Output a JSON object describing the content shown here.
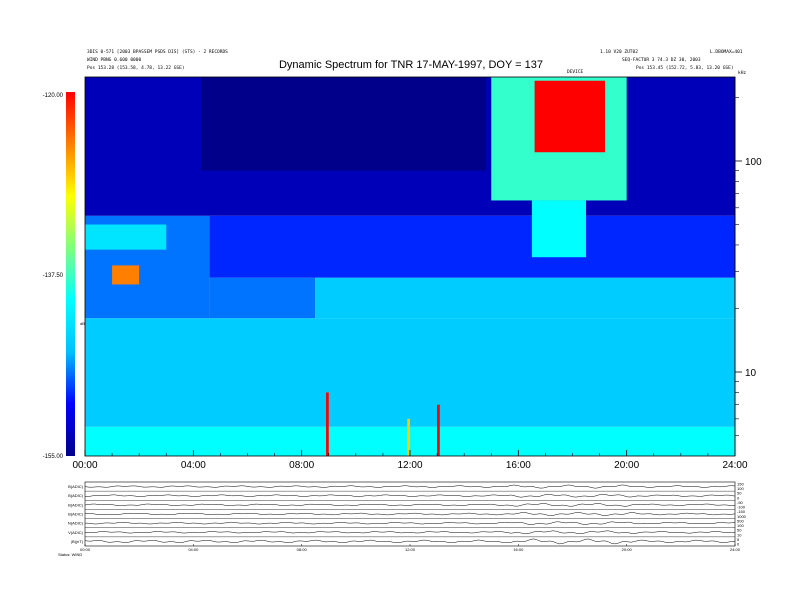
{
  "chart_data": {
    "type": "heatmap",
    "title": "Dynamic Spectrum for TNR 17-MAY-1997, DOY = 137",
    "header_left": [
      "3DIS 0-571 [2003 BPASSEM PSDS DIS] (STS) - 2 RECORDS",
      "WIND PBNG 0.600 0000",
      "Pos   153.28 (153.58, 4.78, 13.22 GSE)"
    ],
    "header_right": [
      "1.10 V20 ZUT02",
      "SEQ-FACTUR 3 74.3 DZ 30, 2003",
      "Pos   153.45 (152.72, 5.83, 13.20 GSE)"
    ],
    "header_right_extra": "L.DBOMAX=401",
    "header_center_small": "DEVICE",
    "x_tick_labels": [
      "00:00",
      "04:00",
      "08:00",
      "12:00",
      "16:00",
      "20:00",
      "24:00"
    ],
    "x_range_hours": [
      0,
      24
    ],
    "y_axis_label": "kHz",
    "y_scale": "log",
    "y_range_khz": [
      4,
      250
    ],
    "y_tick_labels": [
      {
        "value": 100,
        "label": "100"
      },
      {
        "value": 10,
        "label": "10"
      }
    ],
    "colorbar": {
      "label": "dB",
      "tick_labels": [
        "-120.00",
        "-137.50",
        "-155.00"
      ],
      "range": [
        -155.0,
        -120.0
      ],
      "colormap": [
        "#00008b",
        "#0000ff",
        "#00bfff",
        "#00ffff",
        "#7fff7f",
        "#ffff00",
        "#ff7f00",
        "#ff0000"
      ]
    },
    "regions_db": [
      {
        "t0": 0.0,
        "t1": 24.0,
        "f0": 4,
        "f1": 5.5,
        "db": -140
      },
      {
        "t0": 0.0,
        "t1": 24.0,
        "f0": 5.5,
        "f1": 18,
        "db": -144
      },
      {
        "t0": 4.6,
        "t1": 8.5,
        "f0": 18,
        "f1": 28,
        "db": -147
      },
      {
        "t0": 8.5,
        "t1": 24.0,
        "f0": 18,
        "f1": 28,
        "db": -144
      },
      {
        "t0": 0.0,
        "t1": 4.6,
        "f0": 18,
        "f1": 55,
        "db": -147
      },
      {
        "t0": 4.6,
        "t1": 24.0,
        "f0": 28,
        "f1": 55,
        "db": -149
      },
      {
        "t0": 0.0,
        "t1": 24.0,
        "f0": 55,
        "f1": 250,
        "db": -153
      },
      {
        "t0": 4.3,
        "t1": 14.8,
        "f0": 90,
        "f1": 250,
        "db": -156
      },
      {
        "t0": 5.2,
        "t1": 10.5,
        "f0": 160,
        "f1": 230,
        "db": -160
      },
      {
        "t0": 15.0,
        "t1": 20.0,
        "f0": 65,
        "f1": 250,
        "db": -138
      },
      {
        "t0": 16.6,
        "t1": 19.2,
        "f0": 110,
        "f1": 240,
        "db": -120
      },
      {
        "t0": 16.5,
        "t1": 18.5,
        "f0": 35,
        "f1": 65,
        "db": -140
      },
      {
        "t0": 1.0,
        "t1": 2.0,
        "f0": 26,
        "f1": 32,
        "db": -125
      },
      {
        "t0": 0.0,
        "t1": 3.0,
        "f0": 38,
        "f1": 50,
        "db": -142
      },
      {
        "t0": 8.9,
        "t1": 9.0,
        "f0": 4,
        "f1": 8,
        "db": -120
      },
      {
        "t0": 13.0,
        "t1": 13.1,
        "f0": 4,
        "f1": 7,
        "db": -120
      },
      {
        "t0": 11.9,
        "t1": 12.0,
        "f0": 4,
        "f1": 6,
        "db": -128
      }
    ],
    "bottom_panels": {
      "labels": [
        "B(ADIC)",
        "B(ADIC)",
        "B(ADIC)",
        "B(ADIC)",
        "N(ADIC)",
        "V(ADIC)",
        "|B|(nT)"
      ],
      "right_tick_labels": [
        "150",
        "100",
        "50",
        "0",
        "-50",
        "-100",
        "-150",
        "1000",
        "500",
        "100",
        "50",
        "10",
        "5",
        "0"
      ],
      "x_tick_labels": [
        "00:00",
        "04:00",
        "08:00",
        "12:00",
        "16:00",
        "20:00",
        "24:00"
      ],
      "footer_label": "Status: WIND"
    }
  }
}
